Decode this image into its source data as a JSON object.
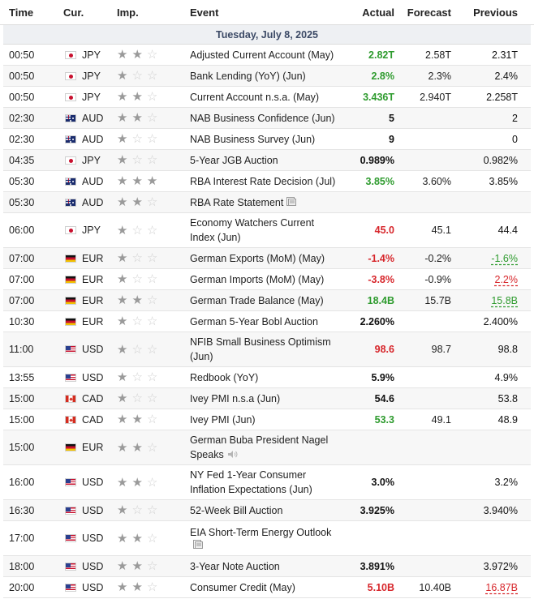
{
  "header": {
    "time": "Time",
    "currency": "Cur.",
    "importance": "Imp.",
    "event": "Event",
    "actual": "Actual",
    "forecast": "Forecast",
    "previous": "Previous"
  },
  "day_label": "Tuesday, July 8, 2025",
  "colors": {
    "positive": "#2e9b2e",
    "negative": "#d7262b",
    "day_bar": "#eef0f3"
  },
  "rows": [
    {
      "time": "00:50",
      "flag": "jp",
      "currency": "JPY",
      "stars": 2,
      "event": "Adjusted Current Account (May)",
      "actual": "2.82T",
      "actual_color": "green",
      "forecast": "2.58T",
      "previous": "2.31T",
      "prev_style": "plain",
      "h": 26
    },
    {
      "time": "00:50",
      "flag": "jp",
      "currency": "JPY",
      "stars": 1,
      "event": "Bank Lending (YoY) (Jun)",
      "actual": "2.8%",
      "actual_color": "green",
      "forecast": "2.3%",
      "previous": "2.4%",
      "prev_style": "plain",
      "h": 26
    },
    {
      "time": "00:50",
      "flag": "jp",
      "currency": "JPY",
      "stars": 2,
      "event": "Current Account n.s.a. (May)",
      "actual": "3.436T",
      "actual_color": "green",
      "forecast": "2.940T",
      "previous": "2.258T",
      "prev_style": "plain",
      "h": 26
    },
    {
      "time": "02:30",
      "flag": "au",
      "currency": "AUD",
      "stars": 2,
      "event": "NAB Business Confidence (Jun)",
      "actual": "5",
      "actual_color": "black",
      "forecast": "",
      "previous": "2",
      "prev_style": "plain",
      "h": 26
    },
    {
      "time": "02:30",
      "flag": "au",
      "currency": "AUD",
      "stars": 1,
      "event": "NAB Business Survey (Jun)",
      "actual": "9",
      "actual_color": "black",
      "forecast": "",
      "previous": "0",
      "prev_style": "plain",
      "h": 26
    },
    {
      "time": "04:35",
      "flag": "jp",
      "currency": "JPY",
      "stars": 1,
      "event": "5-Year JGB Auction",
      "actual": "0.989%",
      "actual_color": "black",
      "forecast": "",
      "previous": "0.982%",
      "prev_style": "plain",
      "h": 26
    },
    {
      "time": "05:30",
      "flag": "au",
      "currency": "AUD",
      "stars": 3,
      "event": "RBA Interest Rate Decision (Jul)",
      "actual": "3.85%",
      "actual_color": "green",
      "forecast": "3.60%",
      "previous": "3.85%",
      "prev_style": "plain",
      "h": 26
    },
    {
      "time": "05:30",
      "flag": "au",
      "currency": "AUD",
      "stars": 2,
      "event": "RBA Rate Statement",
      "icon": "document-icon",
      "actual": "",
      "actual_color": "black",
      "forecast": "",
      "previous": "",
      "prev_style": "plain",
      "h": 26
    },
    {
      "time": "06:00",
      "flag": "jp",
      "currency": "JPY",
      "stars": 1,
      "event": "Economy Watchers Current Index (Jun)",
      "actual": "45.0",
      "actual_color": "red",
      "forecast": "45.1",
      "previous": "44.4",
      "prev_style": "plain",
      "h": 43
    },
    {
      "time": "07:00",
      "flag": "de",
      "currency": "EUR",
      "stars": 1,
      "event": "German Exports (MoM) (May)",
      "actual": "-1.4%",
      "actual_color": "red",
      "forecast": "-0.2%",
      "previous": "-1.6%",
      "prev_style": "green",
      "h": 26
    },
    {
      "time": "07:00",
      "flag": "de",
      "currency": "EUR",
      "stars": 1,
      "event": "German Imports (MoM) (May)",
      "actual": "-3.8%",
      "actual_color": "red",
      "forecast": "-0.9%",
      "previous": "2.2%",
      "prev_style": "red",
      "h": 26
    },
    {
      "time": "07:00",
      "flag": "de",
      "currency": "EUR",
      "stars": 2,
      "event": "German Trade Balance (May)",
      "actual": "18.4B",
      "actual_color": "green",
      "forecast": "15.7B",
      "previous": "15.8B",
      "prev_style": "green",
      "h": 26
    },
    {
      "time": "10:30",
      "flag": "de",
      "currency": "EUR",
      "stars": 1,
      "event": "German 5-Year Bobl Auction",
      "actual": "2.260%",
      "actual_color": "black",
      "forecast": "",
      "previous": "2.400%",
      "prev_style": "plain",
      "h": 26
    },
    {
      "time": "11:00",
      "flag": "us",
      "currency": "USD",
      "stars": 1,
      "event": "NFIB Small Business Optimism (Jun)",
      "actual": "98.6",
      "actual_color": "red",
      "forecast": "98.7",
      "previous": "98.8",
      "prev_style": "plain",
      "h": 43
    },
    {
      "time": "13:55",
      "flag": "us",
      "currency": "USD",
      "stars": 1,
      "event": "Redbook (YoY)",
      "actual": "5.9%",
      "actual_color": "black",
      "forecast": "",
      "previous": "4.9%",
      "prev_style": "plain",
      "h": 26
    },
    {
      "time": "15:00",
      "flag": "ca",
      "currency": "CAD",
      "stars": 1,
      "event": "Ivey PMI n.s.a (Jun)",
      "actual": "54.6",
      "actual_color": "black",
      "forecast": "",
      "previous": "53.8",
      "prev_style": "plain",
      "h": 26
    },
    {
      "time": "15:00",
      "flag": "ca",
      "currency": "CAD",
      "stars": 2,
      "event": "Ivey PMI (Jun)",
      "actual": "53.3",
      "actual_color": "green",
      "forecast": "49.1",
      "previous": "48.9",
      "prev_style": "plain",
      "h": 26
    },
    {
      "time": "15:00",
      "flag": "de",
      "currency": "EUR",
      "stars": 2,
      "event": "German Buba President Nagel Speaks",
      "icon": "speaker-icon",
      "actual": "",
      "actual_color": "black",
      "forecast": "",
      "previous": "",
      "prev_style": "plain",
      "h": 43
    },
    {
      "time": "16:00",
      "flag": "us",
      "currency": "USD",
      "stars": 2,
      "event": "NY Fed 1-Year Consumer Inflation Expectations (Jun)",
      "actual": "3.0%",
      "actual_color": "black",
      "forecast": "",
      "previous": "3.2%",
      "prev_style": "plain",
      "h": 43
    },
    {
      "time": "16:30",
      "flag": "us",
      "currency": "USD",
      "stars": 1,
      "event": "52-Week Bill Auction",
      "actual": "3.925%",
      "actual_color": "black",
      "forecast": "",
      "previous": "3.940%",
      "prev_style": "plain",
      "h": 26
    },
    {
      "time": "17:00",
      "flag": "us",
      "currency": "USD",
      "stars": 2,
      "event": "EIA Short-Term Energy Outlook",
      "icon": "document-icon",
      "actual": "",
      "actual_color": "black",
      "forecast": "",
      "previous": "",
      "prev_style": "plain",
      "h": 43
    },
    {
      "time": "18:00",
      "flag": "us",
      "currency": "USD",
      "stars": 2,
      "event": "3-Year Note Auction",
      "actual": "3.891%",
      "actual_color": "black",
      "forecast": "",
      "previous": "3.972%",
      "prev_style": "plain",
      "h": 26
    },
    {
      "time": "20:00",
      "flag": "us",
      "currency": "USD",
      "stars": 2,
      "event": "Consumer Credit (May)",
      "actual": "5.10B",
      "actual_color": "red",
      "forecast": "10.40B",
      "previous": "16.87B",
      "prev_style": "red",
      "h": 26
    }
  ]
}
